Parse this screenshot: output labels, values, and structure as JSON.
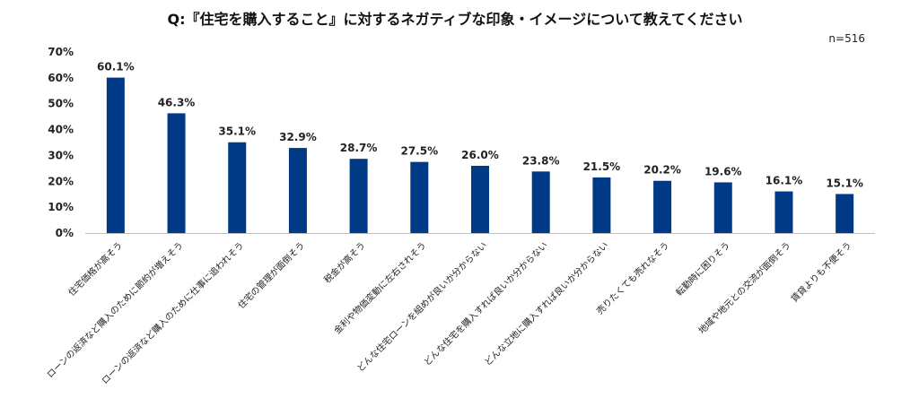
{
  "chart_data": {
    "type": "bar",
    "title": "Q:『住宅を購入すること』に対するネガティブな印象・イメージについて教えてください",
    "sample_size": "n=516",
    "categories": [
      "住宅価格が高そう",
      "ローンの返済など購入のために節約が増えそう",
      "ローンの返済など購入のために仕事に追われそう",
      "住宅の管理が面倒そう",
      "税金が高そう",
      "金利や物価変動に左右されそう",
      "どんな住宅ローンを組めが良いか分からない",
      "どんな住宅を購入すれば良いか分からない",
      "どんな立地に購入すれば良いか分からない",
      "売りたくても売れなそう",
      "転勤時に困りそう",
      "地域や地元との交流が面倒そう",
      "賃貸よりも不便そう"
    ],
    "values": [
      60.1,
      46.3,
      35.1,
      32.9,
      28.7,
      27.5,
      26.0,
      23.8,
      21.5,
      20.2,
      19.6,
      16.1,
      15.1
    ],
    "value_labels": [
      "60.1%",
      "46.3%",
      "35.1%",
      "32.9%",
      "28.7%",
      "27.5%",
      "26.0%",
      "23.8%",
      "21.5%",
      "20.2%",
      "19.6%",
      "16.1%",
      "15.1%"
    ],
    "yticks": [
      "0%",
      "10%",
      "20%",
      "30%",
      "40%",
      "50%",
      "60%",
      "70%"
    ],
    "ylim": [
      0,
      70
    ],
    "grid": false,
    "legend": "none",
    "bar_color": "#003a87"
  }
}
